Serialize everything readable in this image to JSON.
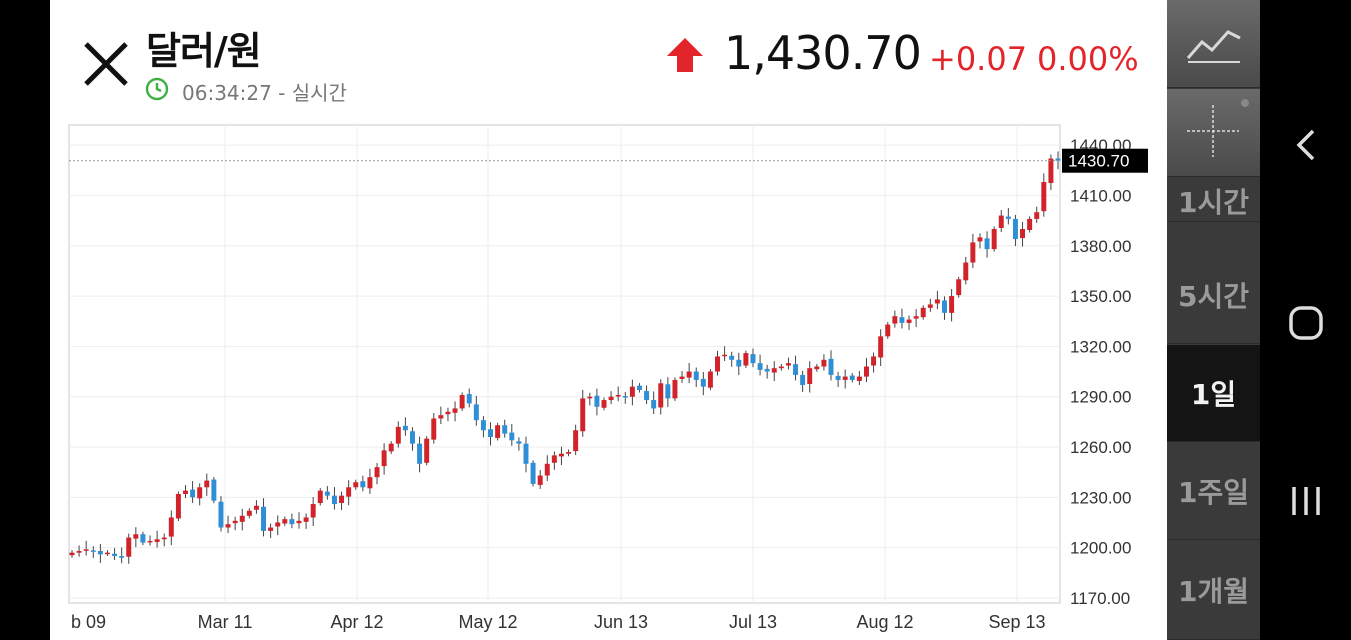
{
  "header": {
    "title": "달러/원",
    "time": "06:34:27 - 실시간",
    "price": "1,430.70",
    "change": "+0.07",
    "change_pct": "0.00%",
    "up_color": "#e3242b"
  },
  "periods": [
    "1시간",
    "5시간",
    "1일",
    "1주일",
    "1개월"
  ],
  "selected_period": "1일",
  "chart_data": {
    "type": "candlestick",
    "y_ticks": [
      "1440.00",
      "1410.00",
      "1380.00",
      "1350.00",
      "1320.00",
      "1290.00",
      "1260.00",
      "1230.00",
      "1200.00",
      "1170.00"
    ],
    "x_ticks": [
      "b 09",
      "Mar 11",
      "Apr 12",
      "May 12",
      "Jun 13",
      "Jul 13",
      "Aug 12",
      "Sep 13"
    ],
    "current_price_label": "1430.70",
    "current_price": 1430.7,
    "ylim": [
      1167,
      1452
    ],
    "grid": true,
    "up_color": "#d1232a",
    "down_color": "#2f8fd6",
    "closes": [
      1197,
      1198,
      1199,
      1198,
      1196,
      1197,
      1195,
      1194,
      1206,
      1208,
      1203,
      1204,
      1205,
      1206,
      1218,
      1232,
      1234,
      1230,
      1236,
      1240,
      1228,
      1212,
      1214,
      1216,
      1219,
      1222,
      1225,
      1210,
      1212,
      1215,
      1217,
      1214,
      1216,
      1218,
      1226,
      1234,
      1231,
      1226,
      1231,
      1236,
      1239,
      1236,
      1242,
      1248,
      1258,
      1262,
      1272,
      1270,
      1262,
      1250,
      1265,
      1277,
      1279,
      1281,
      1283,
      1291,
      1286,
      1276,
      1270,
      1266,
      1273,
      1268,
      1264,
      1262,
      1250,
      1238,
      1243,
      1250,
      1255,
      1256,
      1257,
      1270,
      1289,
      1290,
      1284,
      1288,
      1290,
      1291,
      1290,
      1296,
      1294,
      1288,
      1283,
      1298,
      1289,
      1300,
      1302,
      1305,
      1300,
      1296,
      1305,
      1314,
      1315,
      1312,
      1308,
      1316,
      1310,
      1306,
      1305,
      1307,
      1308,
      1310,
      1303,
      1297,
      1307,
      1308,
      1312,
      1303,
      1300,
      1302,
      1300,
      1302,
      1308,
      1314,
      1326,
      1333,
      1338,
      1334,
      1336,
      1338,
      1343,
      1345,
      1348,
      1340,
      1350,
      1360,
      1370,
      1382,
      1385,
      1378,
      1390,
      1398,
      1396,
      1384,
      1390,
      1396,
      1400,
      1418,
      1432,
      1430.7
    ]
  }
}
